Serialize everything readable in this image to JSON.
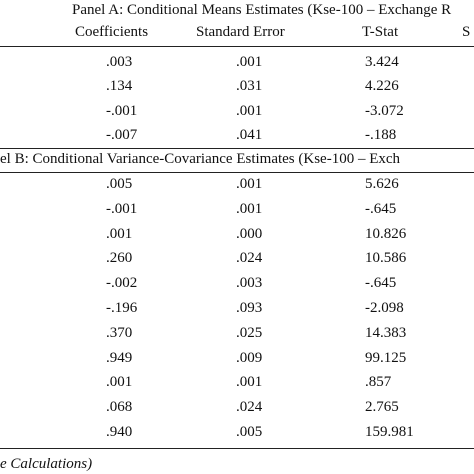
{
  "panel_a": {
    "title": "Panel A: Conditional Means Estimates (Kse-100 – Exchange R",
    "columns": [
      "Coefficients",
      "Standard Error",
      "T-Stat",
      "S"
    ],
    "rows": [
      [
        ".003",
        ".001",
        "3.424"
      ],
      [
        ".134",
        ".031",
        "4.226"
      ],
      [
        "-.001",
        ".001",
        "-3.072"
      ],
      [
        "-.007",
        ".041",
        "-.188"
      ]
    ]
  },
  "panel_b": {
    "title": "el B: Conditional Variance-Covariance Estimates (Kse-100 – Exch",
    "rows": [
      [
        ".005",
        ".001",
        "5.626"
      ],
      [
        "-.001",
        ".001",
        "-.645"
      ],
      [
        ".001",
        ".000",
        "10.826"
      ],
      [
        ".260",
        ".024",
        "10.586"
      ],
      [
        "-.002",
        ".003",
        "-.645"
      ],
      [
        "-.196",
        ".093",
        "-2.098"
      ],
      [
        ".370",
        ".025",
        "14.383"
      ],
      [
        ".949",
        ".009",
        "99.125"
      ],
      [
        ".001",
        ".001",
        ".857"
      ],
      [
        ".068",
        ".024",
        "2.765"
      ],
      [
        ".940",
        ".005",
        "159.981"
      ]
    ]
  },
  "footer": "e Calculations)"
}
